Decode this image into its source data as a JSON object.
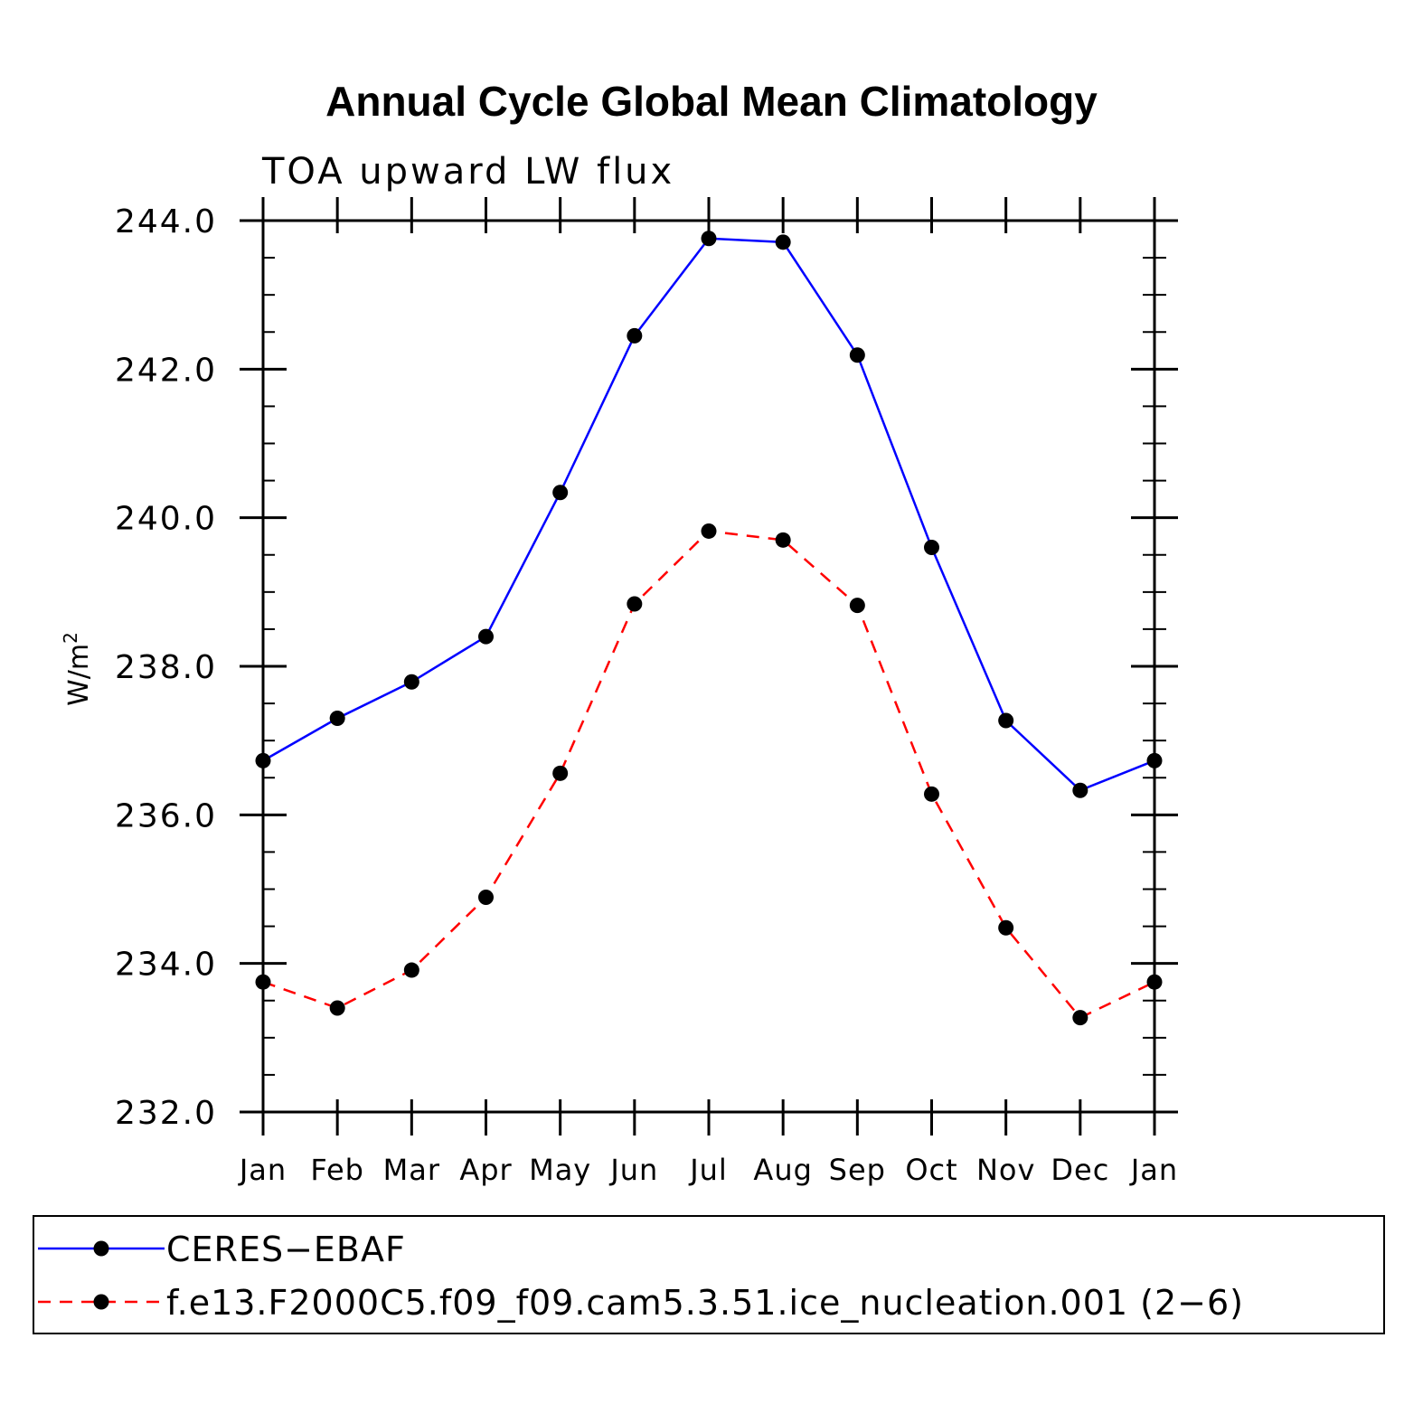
{
  "chart_data": {
    "type": "line",
    "title": "Annual Cycle Global Mean Climatology",
    "subtitle": "TOA upward LW flux",
    "ylabel": "W/m",
    "ylabel_sup": "2",
    "ylim": [
      232.0,
      244.0
    ],
    "yticks": [
      "232.0",
      "234.0",
      "236.0",
      "238.0",
      "240.0",
      "242.0",
      "244.0"
    ],
    "categories": [
      "Jan",
      "Feb",
      "Mar",
      "Apr",
      "May",
      "Jun",
      "Jul",
      "Aug",
      "Sep",
      "Oct",
      "Nov",
      "Dec",
      "Jan"
    ],
    "series": [
      {
        "name": "CERES−EBAF",
        "color": "#0000ff",
        "dash": "solid",
        "values": [
          236.73,
          237.3,
          237.79,
          238.4,
          240.34,
          242.45,
          243.76,
          243.71,
          242.19,
          239.6,
          237.27,
          236.33,
          236.73
        ]
      },
      {
        "name": "f.e13.F2000C5.f09_f09.cam5.3.51.ice_nucleation.001 (2−6)",
        "color": "#ff0000",
        "dash": "dashed",
        "values": [
          233.75,
          233.4,
          233.91,
          234.89,
          236.56,
          238.84,
          239.82,
          239.7,
          238.82,
          236.28,
          234.48,
          233.27,
          233.75
        ]
      }
    ],
    "legend_position": "bottom"
  }
}
